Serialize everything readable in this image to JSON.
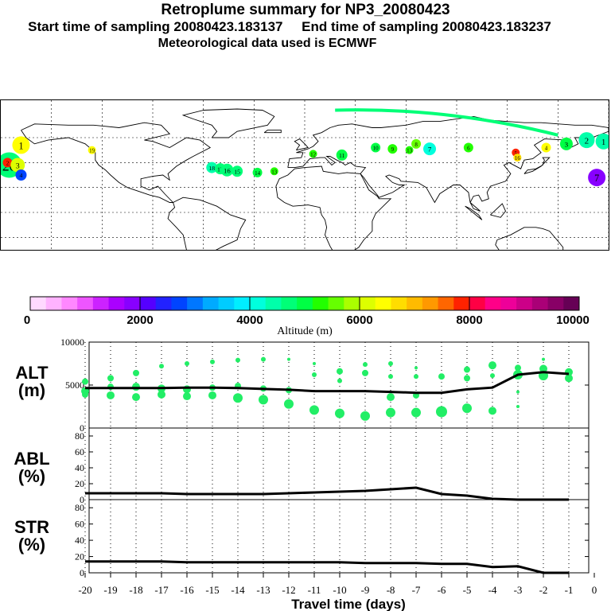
{
  "header": {
    "title": "Retroplume summary for NP3_20080423",
    "line2": "Start time of sampling 20080423.183137     End time of sampling 20080423.183237",
    "line3": "Meteorological data used is ECMWF"
  },
  "colorbar": {
    "tick_labels": [
      "0",
      "2000",
      "4000",
      "6000",
      "8000",
      "10000"
    ],
    "label": "Altitude (m)",
    "colors": [
      "#ffd9ff",
      "#ffb3ff",
      "#ff88ff",
      "#ee55ff",
      "#cc22ff",
      "#aa00ff",
      "#8800ff",
      "#5500ff",
      "#2222ff",
      "#0044ff",
      "#0077ff",
      "#00aaff",
      "#00ccff",
      "#00eeff",
      "#00ffdd",
      "#00ffaa",
      "#00ff77",
      "#00ff44",
      "#22ff00",
      "#66ff00",
      "#aaff00",
      "#ddff00",
      "#ffff00",
      "#ffdd00",
      "#ffbb00",
      "#ff9900",
      "#ff6600",
      "#ff2200",
      "#ff0044",
      "#ff0088",
      "#ee0099",
      "#cc0088",
      "#aa0077",
      "#880066",
      "#660055"
    ],
    "max": 10000
  },
  "chart_data": [
    {
      "type": "scatter",
      "title": "Retroplume map (labels = travel days back)",
      "projection": "equirectangular",
      "lon_range": [
        -180,
        180
      ],
      "lat_range": [
        -30,
        90
      ],
      "centroid_path": [
        {
          "day": 20,
          "lon": -175,
          "lat": 38,
          "alt": 4600,
          "size": 16
        },
        {
          "day": 19,
          "lon": -126,
          "lat": 50,
          "alt": 6300,
          "size": 5
        },
        {
          "day": 18,
          "lon": -55,
          "lat": 36,
          "alt": 4500,
          "size": 7
        },
        {
          "day": 17,
          "lon": -50,
          "lat": 35,
          "alt": 4600,
          "size": 7
        },
        {
          "day": 16,
          "lon": -46,
          "lat": 34,
          "alt": 4700,
          "size": 8
        },
        {
          "day": 15,
          "lon": -40,
          "lat": 33,
          "alt": 4800,
          "size": 7
        },
        {
          "day": 14,
          "lon": -28,
          "lat": 32,
          "alt": 5000,
          "size": 6
        },
        {
          "day": 13,
          "lon": -18,
          "lat": 33,
          "alt": 5200,
          "size": 5
        },
        {
          "day": 12,
          "lon": 5,
          "lat": 47,
          "alt": 5300,
          "size": 5
        },
        {
          "day": 11,
          "lon": 22,
          "lat": 46,
          "alt": 4900,
          "size": 7
        },
        {
          "day": 10,
          "lon": 42,
          "lat": 52,
          "alt": 5000,
          "size": 6
        },
        {
          "day": 9,
          "lon": 52,
          "lat": 51,
          "alt": 5300,
          "size": 6
        },
        {
          "day": 8,
          "lon": 66,
          "lat": 55,
          "alt": 5500,
          "size": 6
        },
        {
          "day": 7,
          "lon": 74,
          "lat": 51,
          "alt": 4200,
          "size": 8
        },
        {
          "day": 6,
          "lon": 97,
          "lat": 52,
          "alt": 5400,
          "size": 6
        },
        {
          "day": 5,
          "lon": 125,
          "lat": 48,
          "alt": 7800,
          "size": 5
        },
        {
          "day": 4,
          "lon": 143,
          "lat": 52,
          "alt": 6300,
          "size": 6
        },
        {
          "day": 3,
          "lon": 155,
          "lat": 55,
          "alt": 5000,
          "size": 8
        },
        {
          "day": 2,
          "lon": 167,
          "lat": 58,
          "alt": 4500,
          "size": 10
        },
        {
          "day": 1,
          "lon": 177,
          "lat": 57,
          "alt": 4300,
          "size": 10
        }
      ],
      "extra_labels": [
        {
          "text": "1",
          "lon": -168,
          "lat": 54,
          "alt": 6500,
          "size": 11
        },
        {
          "text": "2",
          "lon": -176,
          "lat": 40,
          "alt": 7800,
          "size": 6
        },
        {
          "text": "3",
          "lon": -170,
          "lat": 38,
          "alt": 6000,
          "size": 9
        },
        {
          "text": "4",
          "lon": -168,
          "lat": 30,
          "alt": 2700,
          "size": 7
        },
        {
          "text": "7",
          "lon": 173,
          "lat": 28,
          "alt": 1800,
          "size": 11
        },
        {
          "text": "13",
          "lon": 62,
          "lat": 50,
          "alt": 5200,
          "size": 5
        },
        {
          "text": "16",
          "lon": 126,
          "lat": 44,
          "alt": 6600,
          "size": 5
        }
      ],
      "high_arc": {
        "from": {
          "lon": 18,
          "lat": 82
        },
        "to": {
          "lon": 150,
          "lat": 62
        },
        "alt": 4600
      }
    },
    {
      "type": "scatter",
      "title": "ALT",
      "ylabel": "ALT (m)",
      "xlabel": "Travel time (days)",
      "x_ticks": [
        -20,
        -19,
        -18,
        -17,
        -16,
        -15,
        -14,
        -13,
        -12,
        -11,
        -10,
        -9,
        -8,
        -7,
        -6,
        -5,
        -4,
        -3,
        -2,
        -1,
        0
      ],
      "x_tick_labels": [
        "-20",
        "-19",
        "-18",
        "-17",
        "-16",
        "-15",
        "-14",
        "-13",
        "-12",
        "-11",
        "-10",
        "-9",
        "-8",
        "-7",
        "-6",
        "-5",
        "-4",
        "-3",
        "-2",
        "-1",
        "0"
      ],
      "xlim": [
        -20,
        0
      ],
      "ylim": [
        0,
        10000
      ],
      "y_ticks": [
        0,
        5000,
        10000
      ],
      "y_tick_labels": [
        "0",
        "5000",
        "10000"
      ],
      "mean_line": {
        "x": [
          -20,
          -19,
          -18,
          -17,
          -16,
          -15,
          -14,
          -13,
          -12,
          -11,
          -10,
          -9,
          -8,
          -7,
          -6,
          -5,
          -4,
          -3,
          -2,
          -1
        ],
        "y": [
          4650,
          4650,
          4650,
          4650,
          4700,
          4700,
          4650,
          4550,
          4450,
          4300,
          4300,
          4300,
          4200,
          4100,
          4100,
          4500,
          4700,
          6200,
          6500,
          6300
        ]
      },
      "points": [
        {
          "x": -20,
          "y": 5400,
          "s": 4
        },
        {
          "x": -20,
          "y": 4300,
          "s": 5
        },
        {
          "x": -20,
          "y": 3900,
          "s": 4
        },
        {
          "x": -19,
          "y": 5800,
          "s": 4
        },
        {
          "x": -19,
          "y": 4800,
          "s": 4
        },
        {
          "x": -19,
          "y": 3800,
          "s": 5
        },
        {
          "x": -18,
          "y": 6400,
          "s": 4
        },
        {
          "x": -18,
          "y": 4800,
          "s": 5
        },
        {
          "x": -18,
          "y": 3600,
          "s": 5
        },
        {
          "x": -17,
          "y": 7200,
          "s": 3
        },
        {
          "x": -17,
          "y": 4600,
          "s": 5
        },
        {
          "x": -17,
          "y": 3900,
          "s": 5
        },
        {
          "x": -16,
          "y": 7500,
          "s": 3
        },
        {
          "x": -16,
          "y": 4500,
          "s": 5
        },
        {
          "x": -16,
          "y": 3700,
          "s": 5
        },
        {
          "x": -15,
          "y": 7700,
          "s": 3
        },
        {
          "x": -15,
          "y": 4700,
          "s": 4
        },
        {
          "x": -15,
          "y": 3800,
          "s": 5
        },
        {
          "x": -14,
          "y": 7900,
          "s": 3
        },
        {
          "x": -14,
          "y": 4900,
          "s": 4
        },
        {
          "x": -14,
          "y": 3500,
          "s": 6
        },
        {
          "x": -13,
          "y": 8000,
          "s": 3
        },
        {
          "x": -13,
          "y": 4600,
          "s": 4
        },
        {
          "x": -13,
          "y": 3300,
          "s": 6
        },
        {
          "x": -12,
          "y": 8000,
          "s": 2
        },
        {
          "x": -12,
          "y": 4400,
          "s": 4
        },
        {
          "x": -12,
          "y": 2800,
          "s": 6
        },
        {
          "x": -11,
          "y": 7500,
          "s": 2
        },
        {
          "x": -11,
          "y": 6200,
          "s": 3
        },
        {
          "x": -11,
          "y": 2100,
          "s": 6
        },
        {
          "x": -10,
          "y": 6600,
          "s": 4
        },
        {
          "x": -10,
          "y": 5500,
          "s": 3
        },
        {
          "x": -10,
          "y": 1700,
          "s": 6
        },
        {
          "x": -9,
          "y": 7400,
          "s": 3
        },
        {
          "x": -9,
          "y": 6400,
          "s": 4
        },
        {
          "x": -9,
          "y": 1400,
          "s": 6
        },
        {
          "x": -8,
          "y": 7500,
          "s": 3
        },
        {
          "x": -8,
          "y": 6000,
          "s": 3
        },
        {
          "x": -8,
          "y": 3600,
          "s": 5
        },
        {
          "x": -8,
          "y": 1800,
          "s": 6
        },
        {
          "x": -7,
          "y": 7000,
          "s": 2
        },
        {
          "x": -7,
          "y": 6000,
          "s": 3
        },
        {
          "x": -7,
          "y": 3800,
          "s": 4
        },
        {
          "x": -7,
          "y": 1800,
          "s": 6
        },
        {
          "x": -6,
          "y": 6000,
          "s": 4
        },
        {
          "x": -6,
          "y": 1900,
          "s": 7
        },
        {
          "x": -5,
          "y": 6800,
          "s": 4
        },
        {
          "x": -5,
          "y": 5800,
          "s": 4
        },
        {
          "x": -5,
          "y": 2300,
          "s": 6
        },
        {
          "x": -4,
          "y": 7300,
          "s": 5
        },
        {
          "x": -4,
          "y": 6100,
          "s": 3
        },
        {
          "x": -4,
          "y": 2000,
          "s": 5
        },
        {
          "x": -3,
          "y": 7000,
          "s": 4
        },
        {
          "x": -3,
          "y": 6200,
          "s": 6
        },
        {
          "x": -3,
          "y": 4200,
          "s": 2
        },
        {
          "x": -3,
          "y": 2500,
          "s": 2
        },
        {
          "x": -2,
          "y": 8000,
          "s": 2
        },
        {
          "x": -2,
          "y": 6900,
          "s": 5
        },
        {
          "x": -2,
          "y": 6100,
          "s": 6
        },
        {
          "x": -1,
          "y": 6500,
          "s": 5
        },
        {
          "x": -1,
          "y": 5800,
          "s": 5
        }
      ],
      "point_color": "#22ee66"
    },
    {
      "type": "line",
      "title": "ABL",
      "ylabel": "ABL (%)",
      "xlim": [
        -20,
        0
      ],
      "ylim": [
        0,
        90
      ],
      "y_ticks": [
        0,
        20,
        40,
        60,
        80
      ],
      "y_tick_labels": [
        "0",
        "20",
        "40",
        "60",
        "80"
      ],
      "x": [
        -20,
        -19,
        -18,
        -17,
        -16,
        -15,
        -14,
        -13,
        -12,
        -11,
        -10,
        -9,
        -8,
        -7,
        -6,
        -5,
        -4,
        -3,
        -2,
        -1
      ],
      "y": [
        8,
        8,
        8,
        8,
        7,
        7,
        7,
        7,
        8,
        9,
        10,
        11,
        13,
        15,
        7,
        5,
        1,
        0,
        0,
        0
      ]
    },
    {
      "type": "line",
      "title": "STR",
      "ylabel": "STR (%)",
      "xlim": [
        -20,
        0
      ],
      "ylim": [
        0,
        90
      ],
      "y_ticks": [
        0,
        20,
        40,
        60,
        80
      ],
      "y_tick_labels": [
        "0",
        "20",
        "40",
        "60",
        "80"
      ],
      "x": [
        -20,
        -19,
        -18,
        -17,
        -16,
        -15,
        -14,
        -13,
        -12,
        -11,
        -10,
        -9,
        -8,
        -7,
        -6,
        -5,
        -4,
        -3,
        -2,
        -1
      ],
      "y": [
        14,
        14,
        14,
        14,
        13,
        13,
        13,
        13,
        13,
        13,
        13,
        12,
        12,
        12,
        11,
        11,
        7,
        8,
        0,
        0
      ]
    }
  ],
  "panels": {
    "alt_label_1": "ALT",
    "alt_label_2": "(m)",
    "abl_label_1": "ABL",
    "abl_label_2": "(%)",
    "str_label_1": "STR",
    "str_label_2": "(%)",
    "xlabel": "Travel time (days)"
  }
}
